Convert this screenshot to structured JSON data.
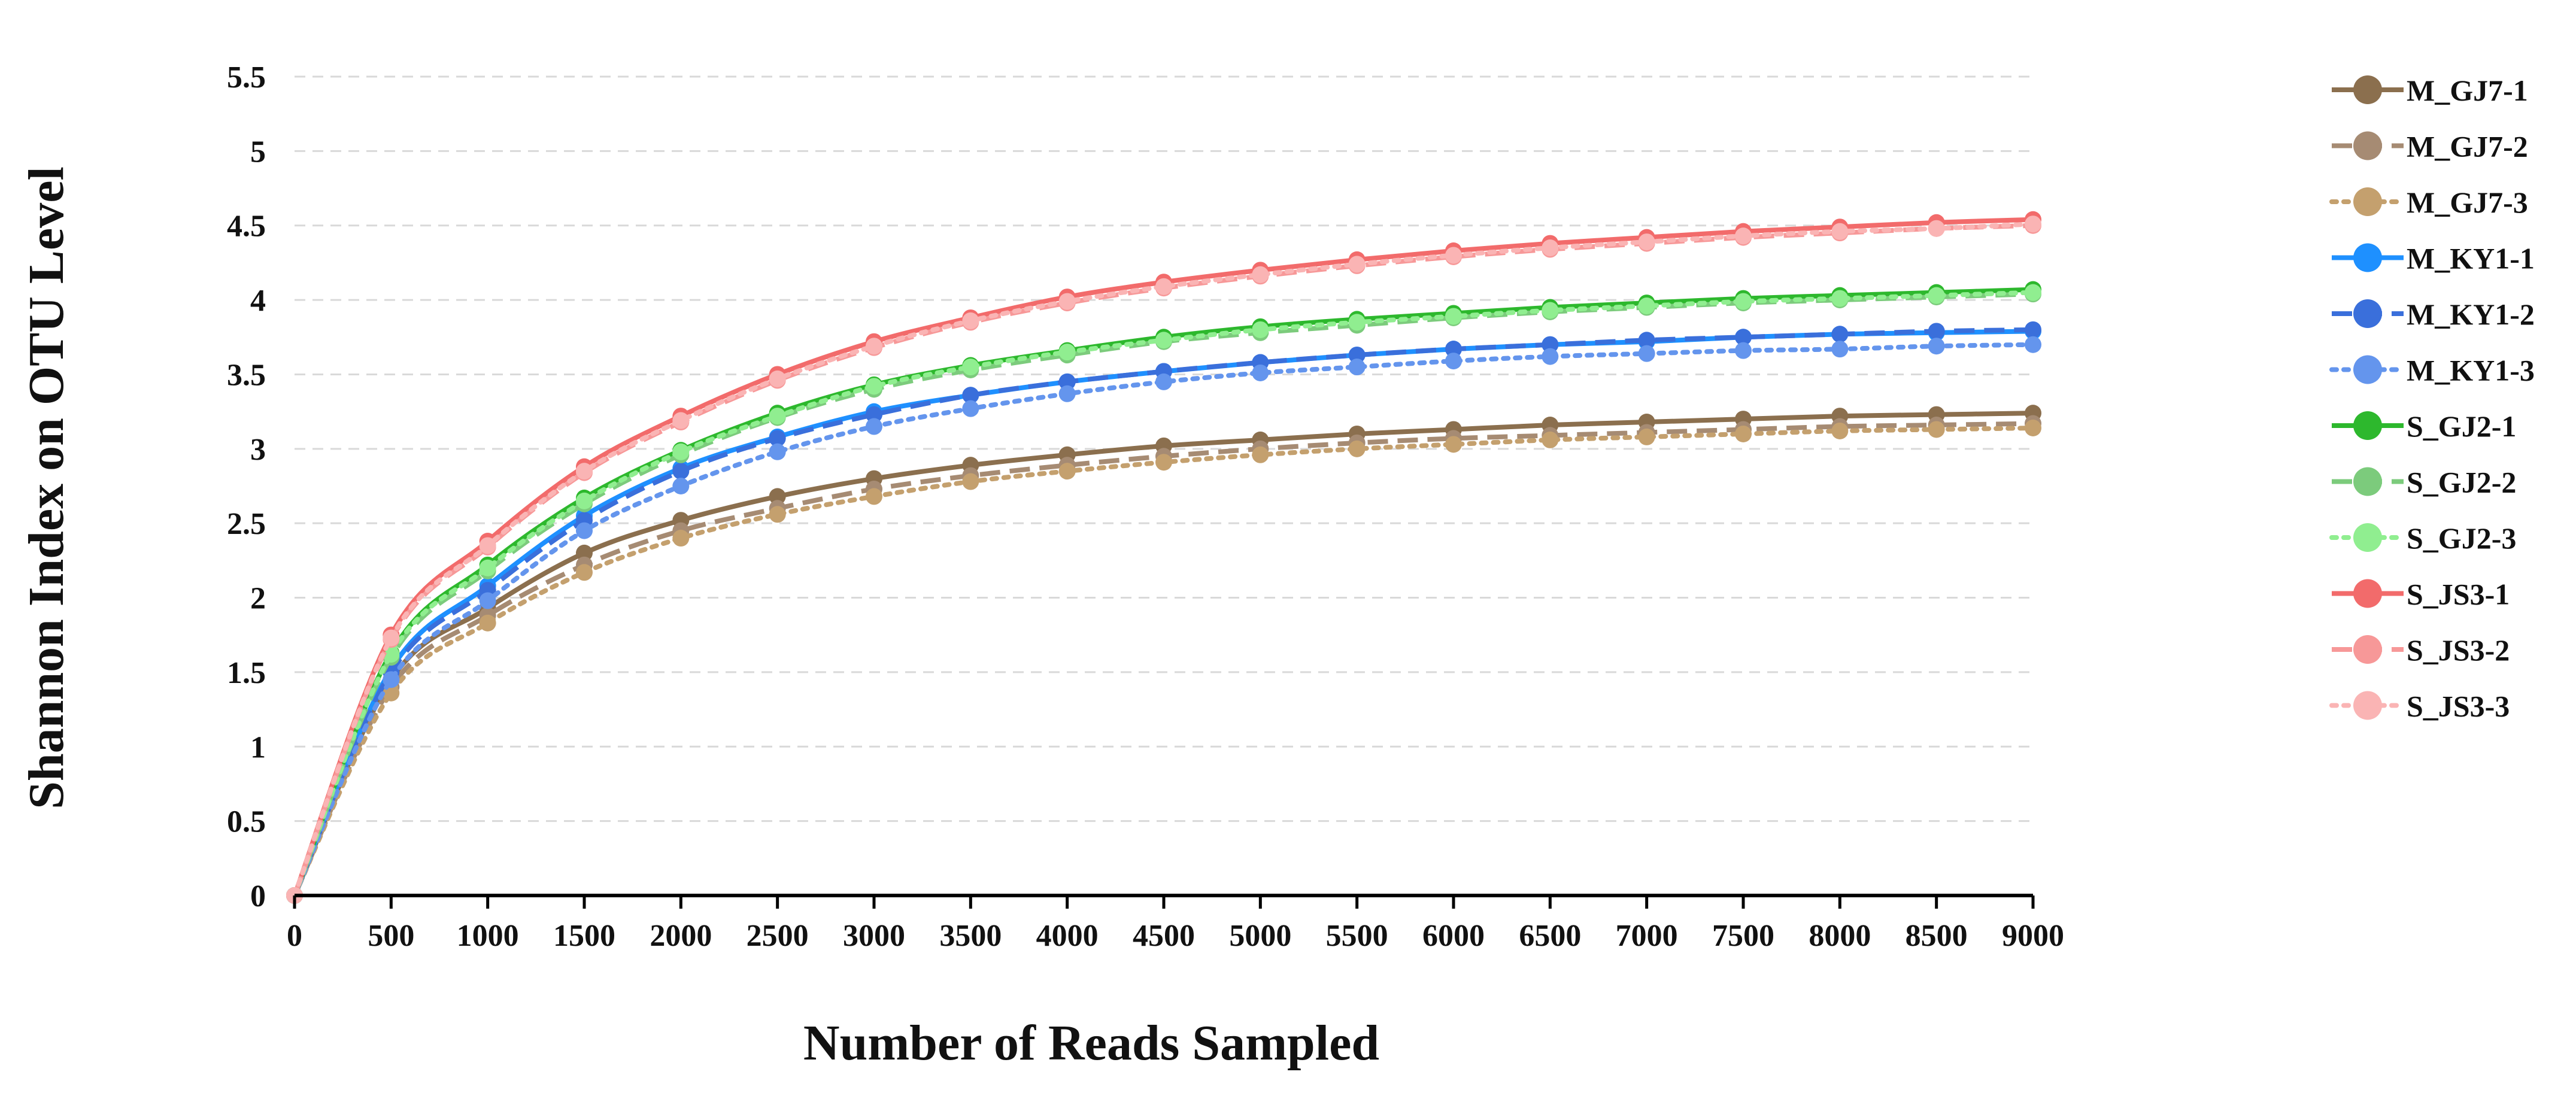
{
  "chart_data": {
    "type": "line",
    "title": "",
    "xlabel": "Number of Reads Sampled",
    "ylabel": "Shannon Index on OTU Level",
    "xlim": [
      0,
      9000
    ],
    "ylim": [
      0,
      5.5
    ],
    "grid": "horizontal dashed",
    "legend_position": "right",
    "x_ticks": [
      "0",
      "500",
      "1000",
      "1500",
      "2000",
      "2500",
      "3000",
      "3500",
      "4000",
      "4500",
      "5000",
      "5500",
      "6000",
      "6500",
      "7000",
      "7500",
      "8000",
      "8500",
      "9000"
    ],
    "y_ticks": [
      "0",
      "0.5",
      "1",
      "1.5",
      "2",
      "2.5",
      "3",
      "3.5",
      "4",
      "4.5",
      "5",
      "5.5"
    ],
    "x": [
      0,
      500,
      1000,
      1500,
      2000,
      2500,
      3000,
      3500,
      4000,
      4500,
      5000,
      5500,
      6000,
      6500,
      7000,
      7500,
      8000,
      8500,
      9000
    ],
    "series": [
      {
        "name": "M_GJ7-1",
        "color": "#8B6F4E",
        "style": "solid",
        "values": [
          0,
          1.45,
          1.93,
          2.3,
          2.52,
          2.68,
          2.8,
          2.89,
          2.96,
          3.02,
          3.06,
          3.1,
          3.13,
          3.16,
          3.18,
          3.2,
          3.22,
          3.23,
          3.24
        ]
      },
      {
        "name": "M_GJ7-2",
        "color": "#A68B73",
        "style": "dashed",
        "values": [
          0,
          1.4,
          1.88,
          2.22,
          2.45,
          2.6,
          2.73,
          2.82,
          2.89,
          2.95,
          3.0,
          3.04,
          3.07,
          3.09,
          3.11,
          3.13,
          3.15,
          3.16,
          3.17
        ]
      },
      {
        "name": "M_GJ7-3",
        "color": "#C4A06E",
        "style": "dotted",
        "values": [
          0,
          1.36,
          1.83,
          2.17,
          2.4,
          2.56,
          2.68,
          2.78,
          2.85,
          2.91,
          2.96,
          3.0,
          3.03,
          3.06,
          3.08,
          3.1,
          3.12,
          3.13,
          3.14
        ]
      },
      {
        "name": "M_KY1-1",
        "color": "#1E90FF",
        "style": "solid",
        "values": [
          0,
          1.52,
          2.08,
          2.55,
          2.87,
          3.08,
          3.25,
          3.36,
          3.45,
          3.52,
          3.58,
          3.63,
          3.67,
          3.7,
          3.72,
          3.75,
          3.77,
          3.78,
          3.79
        ]
      },
      {
        "name": "M_KY1-2",
        "color": "#3A6FDB",
        "style": "dashed",
        "values": [
          0,
          1.5,
          2.05,
          2.52,
          2.85,
          3.07,
          3.23,
          3.36,
          3.45,
          3.52,
          3.58,
          3.63,
          3.67,
          3.7,
          3.73,
          3.75,
          3.77,
          3.79,
          3.8
        ]
      },
      {
        "name": "M_KY1-3",
        "color": "#6495ED",
        "style": "dotted",
        "values": [
          0,
          1.45,
          1.98,
          2.45,
          2.75,
          2.98,
          3.15,
          3.27,
          3.37,
          3.45,
          3.51,
          3.55,
          3.59,
          3.62,
          3.64,
          3.66,
          3.67,
          3.69,
          3.7
        ]
      },
      {
        "name": "S_GJ2-1",
        "color": "#2DB82D",
        "style": "solid",
        "values": [
          0,
          1.63,
          2.22,
          2.67,
          2.99,
          3.24,
          3.43,
          3.56,
          3.66,
          3.75,
          3.82,
          3.87,
          3.91,
          3.95,
          3.98,
          4.01,
          4.03,
          4.05,
          4.07
        ]
      },
      {
        "name": "S_GJ2-2",
        "color": "#7CCB7C",
        "style": "dashed",
        "values": [
          0,
          1.6,
          2.18,
          2.63,
          2.96,
          3.21,
          3.4,
          3.53,
          3.63,
          3.72,
          3.78,
          3.83,
          3.88,
          3.92,
          3.95,
          3.98,
          4.0,
          4.02,
          4.04
        ]
      },
      {
        "name": "S_GJ2-3",
        "color": "#90EE90",
        "style": "dotted",
        "values": [
          0,
          1.62,
          2.2,
          2.65,
          2.98,
          3.22,
          3.42,
          3.55,
          3.65,
          3.73,
          3.8,
          3.85,
          3.89,
          3.93,
          3.96,
          3.99,
          4.01,
          4.03,
          4.05
        ]
      },
      {
        "name": "S_JS3-1",
        "color": "#F26B6B",
        "style": "solid",
        "values": [
          0,
          1.75,
          2.38,
          2.88,
          3.22,
          3.5,
          3.72,
          3.88,
          4.02,
          4.12,
          4.2,
          4.27,
          4.33,
          4.38,
          4.42,
          4.46,
          4.49,
          4.52,
          4.54
        ]
      },
      {
        "name": "S_JS3-2",
        "color": "#F79898",
        "style": "dashed",
        "values": [
          0,
          1.72,
          2.34,
          2.84,
          3.18,
          3.46,
          3.68,
          3.85,
          3.98,
          4.08,
          4.16,
          4.23,
          4.29,
          4.34,
          4.38,
          4.42,
          4.45,
          4.48,
          4.5
        ]
      },
      {
        "name": "S_JS3-3",
        "color": "#FAB4B4",
        "style": "dotted",
        "values": [
          0,
          1.73,
          2.35,
          2.85,
          3.19,
          3.47,
          3.69,
          3.86,
          3.99,
          4.09,
          4.17,
          4.24,
          4.3,
          4.35,
          4.39,
          4.43,
          4.46,
          4.48,
          4.51
        ]
      }
    ]
  }
}
